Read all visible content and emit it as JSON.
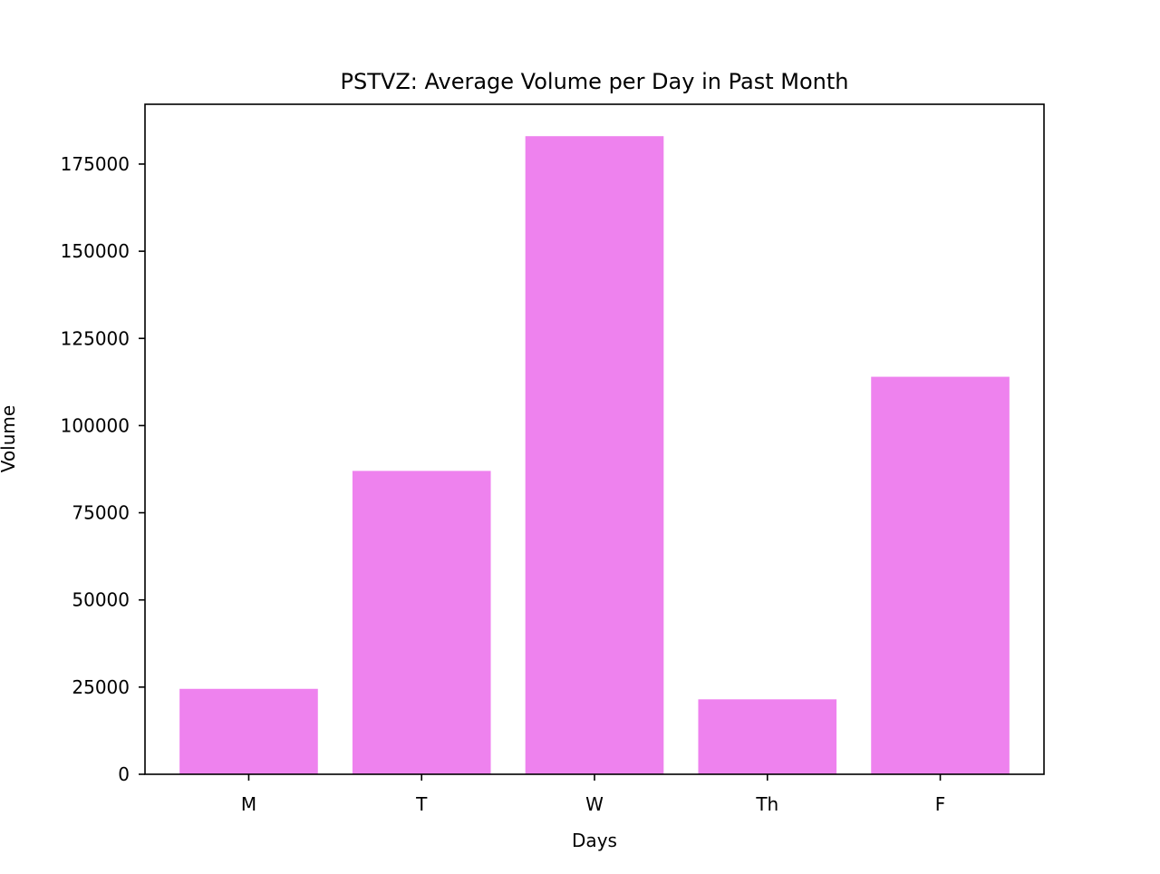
{
  "chart_data": {
    "type": "bar",
    "title": "PSTVZ: Average Volume per Day in Past Month",
    "xlabel": "Days",
    "ylabel": "Volume",
    "categories": [
      "M",
      "T",
      "W",
      "Th",
      "F"
    ],
    "values": [
      24500,
      87000,
      183000,
      21500,
      114000
    ],
    "ylim": [
      0,
      192150
    ],
    "yticks": [
      0,
      25000,
      50000,
      75000,
      100000,
      125000,
      150000,
      175000
    ],
    "bar_color": "#ee82ee",
    "grid": false,
    "legend": "none"
  }
}
